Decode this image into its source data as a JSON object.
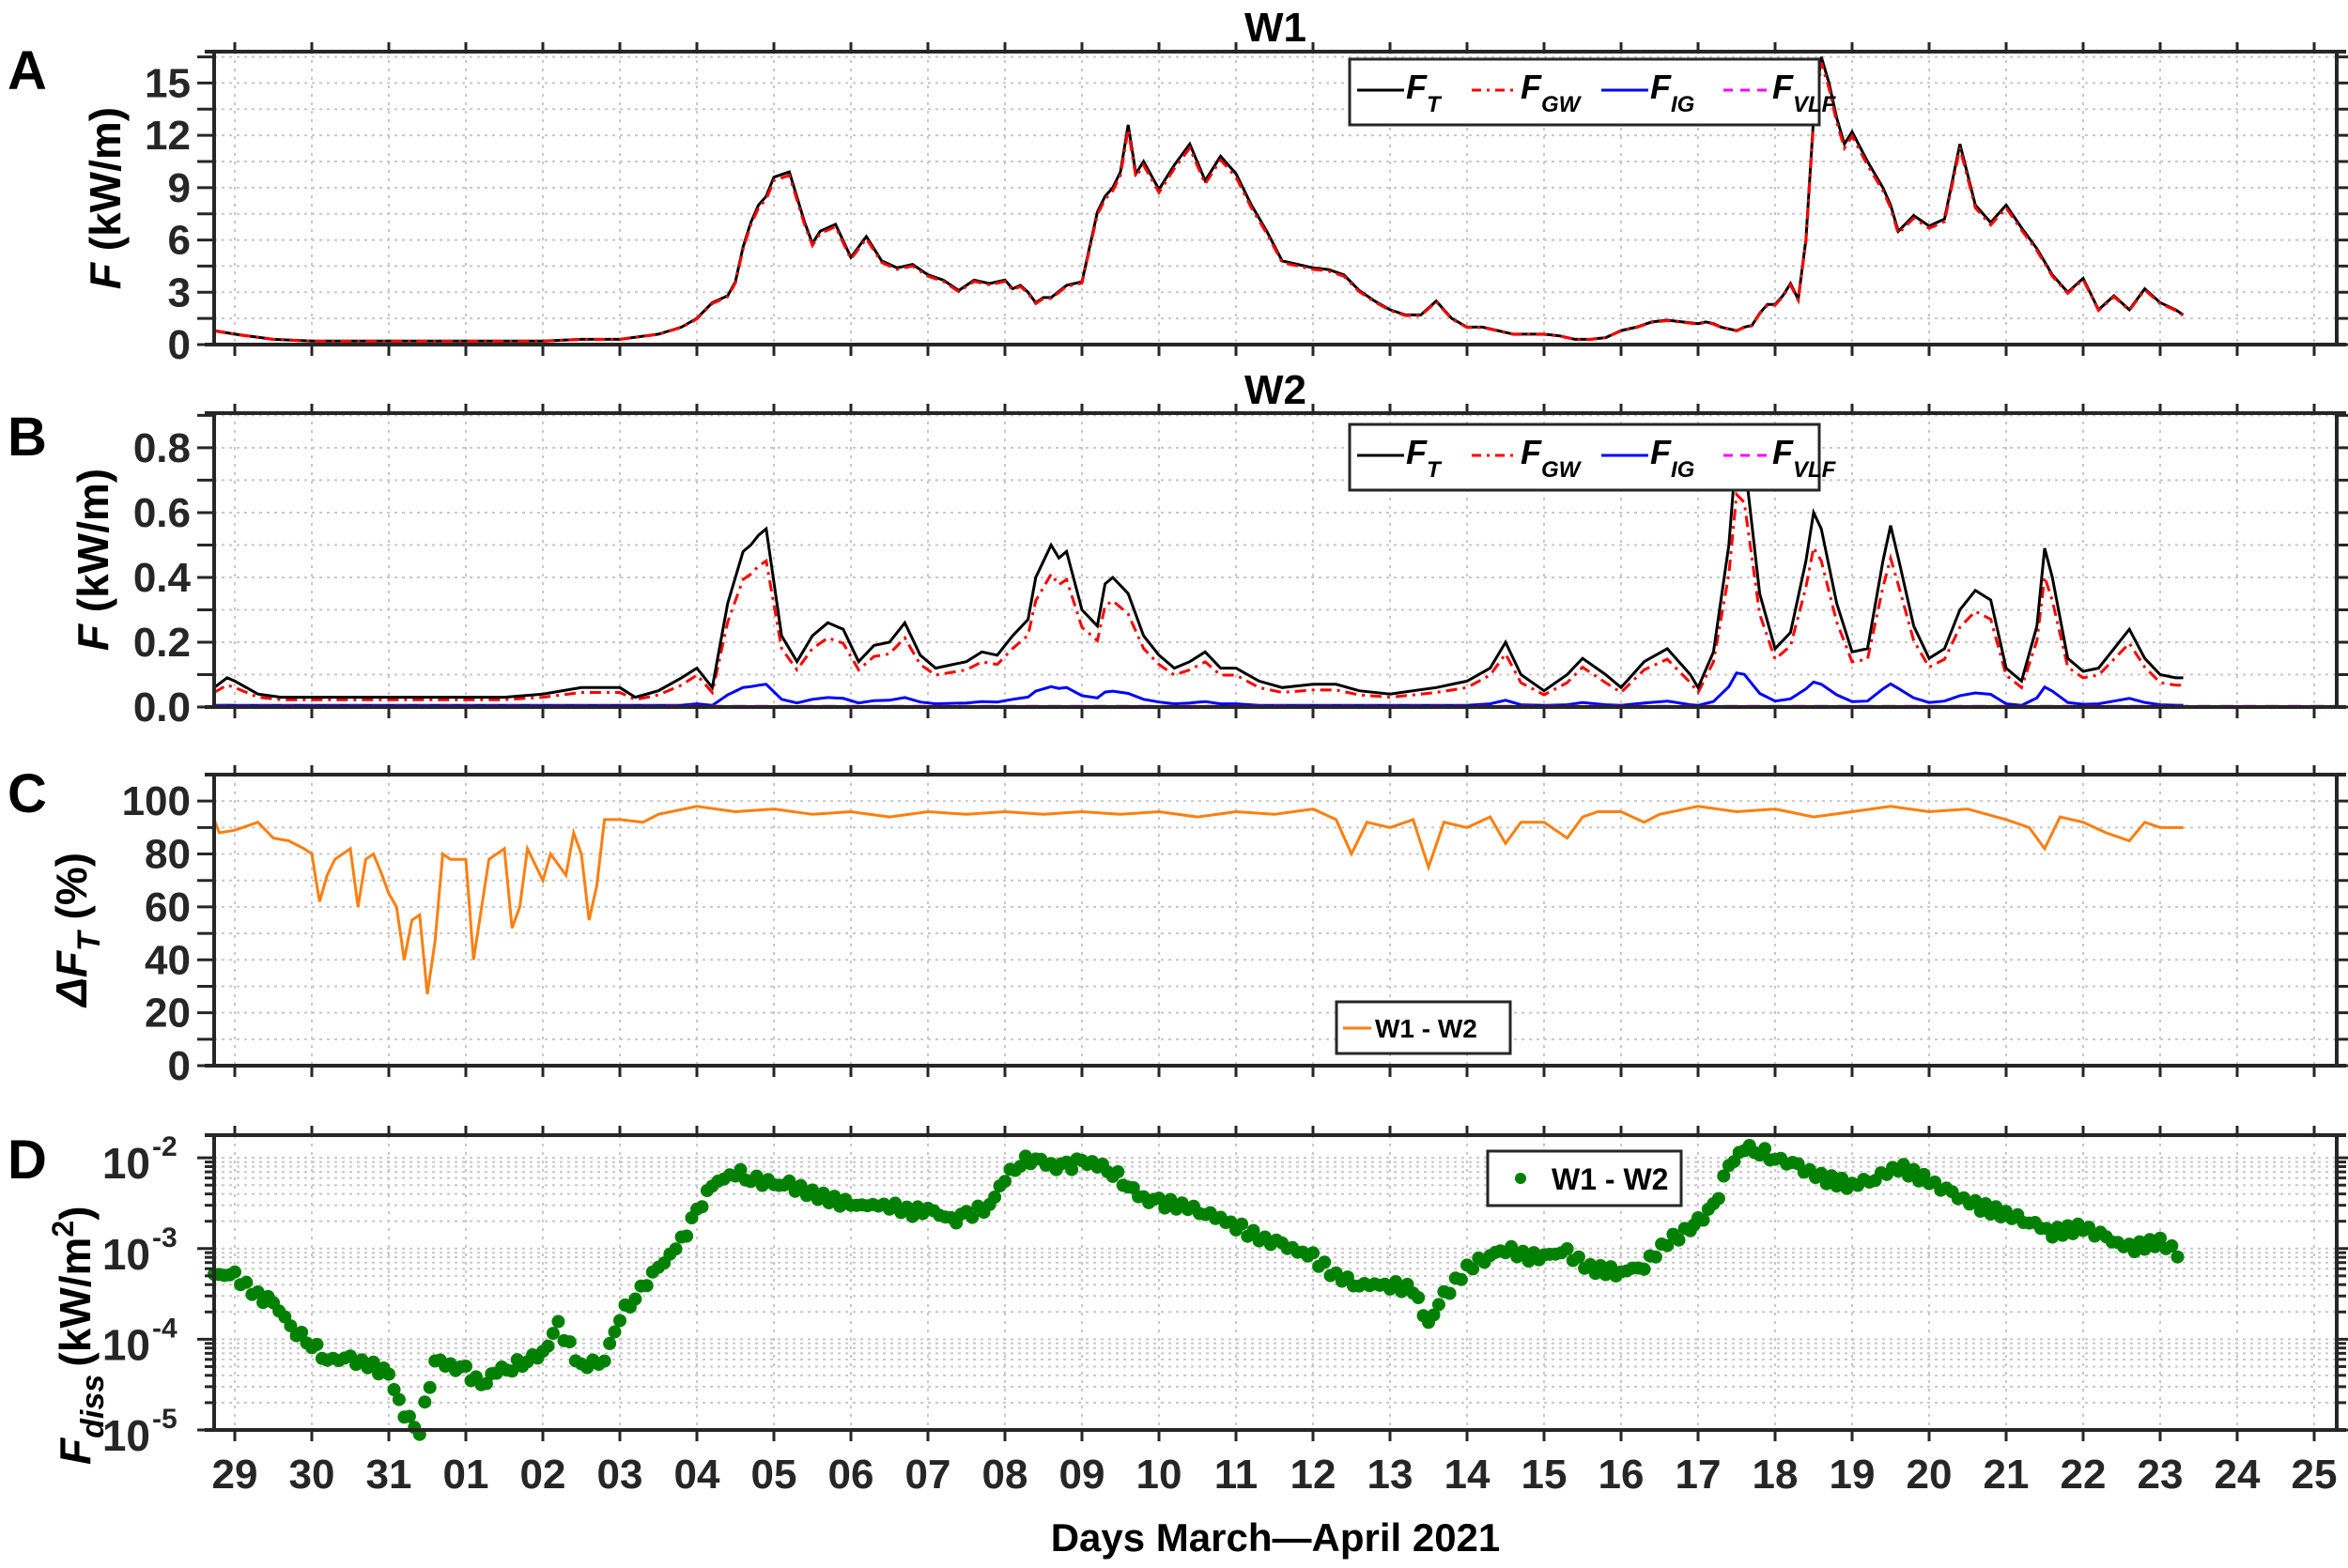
{
  "figure": {
    "xlabel": "Days March—April 2021",
    "x_tick_labels": [
      "29",
      "30",
      "31",
      "01",
      "02",
      "03",
      "04",
      "05",
      "06",
      "07",
      "08",
      "09",
      "10",
      "11",
      "12",
      "13",
      "14",
      "15",
      "16",
      "17",
      "18",
      "19",
      "20",
      "21",
      "22",
      "23",
      "24",
      "25"
    ]
  },
  "panels": {
    "A": {
      "letter": "A",
      "title": "W1",
      "ylabel_main": "F",
      "ylabel_unit": " (kW/m)",
      "yticks": [
        "0",
        "3",
        "6",
        "9",
        "12",
        "15"
      ]
    },
    "B": {
      "letter": "B",
      "title": "W2",
      "ylabel_main": "F",
      "ylabel_unit": " (kW/m)",
      "yticks": [
        "0.0",
        "0.2",
        "0.4",
        "0.6",
        "0.8"
      ]
    },
    "C": {
      "letter": "C",
      "ylabel_main": "ΔF",
      "ylabel_sub": "T",
      "ylabel_unit": " (%)",
      "yticks": [
        "0",
        "20",
        "40",
        "60",
        "80",
        "100"
      ],
      "legend": "W1 - W2"
    },
    "D": {
      "letter": "D",
      "ylabel_main": "F",
      "ylabel_sub": "diss",
      "ylabel_unit": "(kW/m",
      "ylabel_sup": "2",
      "ylabel_close": ")",
      "yticks": [
        "10",
        "10",
        "10",
        "10"
      ],
      "ytick_exps": [
        "-5",
        "-4",
        "-3",
        "-2"
      ],
      "legend": "W1 - W2"
    }
  },
  "legend_flux": [
    {
      "main": "F",
      "sub": "T",
      "color": "#000000",
      "style": "solid"
    },
    {
      "main": "F",
      "sub": "GW",
      "color": "#ff0000",
      "style": "dashdot"
    },
    {
      "main": "F",
      "sub": "IG",
      "color": "#0000ff",
      "style": "solid"
    },
    {
      "main": "F",
      "sub": "VLF",
      "color": "#ff00ff",
      "style": "dashed"
    }
  ],
  "colors": {
    "FT": "#000000",
    "FGW": "#ff0000",
    "FIG": "#0000ff",
    "FVLF": "#ff00ff",
    "deltaFT": "#ff7f0e",
    "Fdiss": "#008000",
    "grid": "#c8c8c8",
    "axis": "#262626"
  },
  "chart_data": [
    {
      "panel": "A",
      "type": "line",
      "title": "W1",
      "xlabel": "Days March—April 2021",
      "ylabel": "F (kW/m)",
      "ylim": [
        0,
        16.8
      ],
      "grid": true,
      "legend_position": "top-center",
      "x_unit": "days since 29 March 2021",
      "x": [
        -0.27,
        0,
        0.5,
        1,
        1.5,
        2,
        2.5,
        3,
        3.5,
        4,
        4.5,
        5,
        5.5,
        5.8,
        6,
        6.2,
        6.4,
        6.5,
        6.6,
        6.7,
        6.8,
        6.9,
        7,
        7.2,
        7.4,
        7.5,
        7.6,
        7.8,
        8,
        8.2,
        8.4,
        8.6,
        8.8,
        9,
        9.2,
        9.4,
        9.6,
        9.8,
        10,
        10.1,
        10.2,
        10.3,
        10.4,
        10.5,
        10.6,
        10.8,
        11,
        11.1,
        11.2,
        11.3,
        11.4,
        11.5,
        11.6,
        11.7,
        11.8,
        12,
        12.2,
        12.4,
        12.6,
        12.8,
        13,
        13.2,
        13.4,
        13.6,
        13.8,
        14,
        14.2,
        14.4,
        14.6,
        14.8,
        15,
        15.2,
        15.4,
        15.6,
        15.8,
        16,
        16.2,
        16.4,
        16.6,
        16.8,
        17,
        17.2,
        17.4,
        17.6,
        17.8,
        18,
        18.2,
        18.4,
        18.6,
        18.8,
        19,
        19.1,
        19.2,
        19.3,
        19.4,
        19.5,
        19.6,
        19.7,
        19.8,
        19.9,
        20,
        20.1,
        20.2,
        20.3,
        20.4,
        20.5,
        20.6,
        20.7,
        20.8,
        20.9,
        21,
        21.2,
        21.4,
        21.5,
        21.6,
        21.8,
        22,
        22.2,
        22.4,
        22.6,
        22.8,
        23,
        23.2,
        23.4,
        23.6,
        23.8,
        24,
        24.2,
        24.4,
        24.6,
        24.8,
        25,
        25.2,
        25.3
      ],
      "series": [
        {
          "name": "F_T",
          "values": [
            0.8,
            0.6,
            0.3,
            0.2,
            0.2,
            0.2,
            0.2,
            0.2,
            0.2,
            0.2,
            0.3,
            0.3,
            0.6,
            1.0,
            1.5,
            2.4,
            2.8,
            3.6,
            5.6,
            7.0,
            8.0,
            8.5,
            9.6,
            9.9,
            7.0,
            5.8,
            6.5,
            6.9,
            5.0,
            6.2,
            4.8,
            4.4,
            4.6,
            4.0,
            3.7,
            3.1,
            3.7,
            3.5,
            3.7,
            3.2,
            3.4,
            3.0,
            2.4,
            2.7,
            2.7,
            3.4,
            3.6,
            5.6,
            7.6,
            8.5,
            9.0,
            9.9,
            12.6,
            9.8,
            10.5,
            8.9,
            10.3,
            11.5,
            9.4,
            10.8,
            9.8,
            8.0,
            6.5,
            4.8,
            4.6,
            4.4,
            4.3,
            4.0,
            3.1,
            2.5,
            2.0,
            1.7,
            1.7,
            2.5,
            1.5,
            1.0,
            1.0,
            0.8,
            0.6,
            0.6,
            0.6,
            0.5,
            0.3,
            0.3,
            0.4,
            0.8,
            1.0,
            1.3,
            1.4,
            1.3,
            1.2,
            1.3,
            1.2,
            1.0,
            0.9,
            0.8,
            1.0,
            1.1,
            1.8,
            2.3,
            2.3,
            2.8,
            3.5,
            2.6,
            6.0,
            13.0,
            16.5,
            15.0,
            13.0,
            11.5,
            12.2,
            10.5,
            9.0,
            8.0,
            6.5,
            7.4,
            6.8,
            7.2,
            11.5,
            8.0,
            7.0,
            8.0,
            6.7,
            5.5,
            4.0,
            3.0,
            3.8,
            2.0,
            2.8,
            2.0,
            3.2,
            2.4,
            2.0,
            1.7,
            1.5,
            1.8,
            1.5,
            1.2
          ]
        },
        {
          "name": "F_GW",
          "values": "≈ F_T (overlapping, slightly below)"
        },
        {
          "name": "F_IG",
          "values": "≈ 0.02 throughout"
        },
        {
          "name": "F_VLF",
          "values": "≈ 0.0 throughout"
        }
      ]
    },
    {
      "panel": "B",
      "type": "line",
      "title": "W2",
      "xlabel": "Days March—April 2021",
      "ylabel": "F (kW/m)",
      "ylim": [
        0,
        0.907
      ],
      "grid": true,
      "legend_position": "top-center",
      "x": [
        -0.27,
        -0.1,
        0,
        0.3,
        0.6,
        1,
        1.5,
        2,
        2.5,
        3,
        3.5,
        4,
        4.5,
        5,
        5.2,
        5.5,
        5.8,
        6,
        6.2,
        6.4,
        6.5,
        6.6,
        6.7,
        6.8,
        6.9,
        7.1,
        7.3,
        7.5,
        7.7,
        7.9,
        8.1,
        8.3,
        8.5,
        8.7,
        8.9,
        9.1,
        9.3,
        9.5,
        9.7,
        9.9,
        10.1,
        10.3,
        10.4,
        10.5,
        10.6,
        10.7,
        10.8,
        11,
        11.2,
        11.3,
        11.4,
        11.6,
        11.8,
        12,
        12.2,
        12.4,
        12.6,
        12.8,
        13,
        13.3,
        13.6,
        14,
        14.3,
        14.6,
        15,
        15.3,
        15.6,
        16,
        16.3,
        16.5,
        16.7,
        17,
        17.3,
        17.5,
        17.8,
        18,
        18.3,
        18.6,
        18.9,
        19,
        19.2,
        19.4,
        19.5,
        19.6,
        19.8,
        20,
        20.2,
        20.4,
        20.5,
        20.6,
        20.8,
        21,
        21.2,
        21.4,
        21.5,
        21.6,
        21.8,
        22,
        22.2,
        22.4,
        22.6,
        22.8,
        23,
        23.2,
        23.4,
        23.5,
        23.6,
        23.8,
        24,
        24.2,
        24.4,
        24.6,
        24.8,
        25,
        25.2,
        25.3
      ],
      "series": [
        {
          "name": "F_T",
          "values": [
            0.06,
            0.09,
            0.08,
            0.04,
            0.03,
            0.03,
            0.03,
            0.03,
            0.03,
            0.03,
            0.03,
            0.04,
            0.06,
            0.06,
            0.03,
            0.05,
            0.09,
            0.12,
            0.06,
            0.32,
            0.4,
            0.48,
            0.5,
            0.53,
            0.55,
            0.22,
            0.14,
            0.22,
            0.26,
            0.24,
            0.14,
            0.19,
            0.2,
            0.26,
            0.16,
            0.12,
            0.13,
            0.14,
            0.17,
            0.16,
            0.22,
            0.27,
            0.4,
            0.45,
            0.5,
            0.46,
            0.48,
            0.3,
            0.25,
            0.38,
            0.4,
            0.35,
            0.22,
            0.16,
            0.12,
            0.14,
            0.17,
            0.12,
            0.12,
            0.08,
            0.06,
            0.07,
            0.07,
            0.05,
            0.04,
            0.05,
            0.06,
            0.08,
            0.12,
            0.2,
            0.1,
            0.05,
            0.1,
            0.15,
            0.1,
            0.06,
            0.14,
            0.18,
            0.1,
            0.06,
            0.17,
            0.5,
            0.8,
            0.77,
            0.35,
            0.18,
            0.23,
            0.45,
            0.6,
            0.55,
            0.32,
            0.17,
            0.18,
            0.45,
            0.56,
            0.46,
            0.25,
            0.15,
            0.18,
            0.3,
            0.36,
            0.33,
            0.12,
            0.08,
            0.25,
            0.49,
            0.4,
            0.15,
            0.11,
            0.12,
            0.18,
            0.24,
            0.15,
            0.1,
            0.09,
            0.09
          ]
        },
        {
          "name": "F_GW",
          "values": "≈ 80–90% of F_T, e.g. peaks 0.46 (Apr 06), 0.42 (Apr 10), 0.63 (Apr 19), 0.47 (Apr 20), 0.48 (Apr 21), 0.43 (Apr 23)"
        },
        {
          "name": "F_IG",
          "values": "small: ~0.01–0.05 typical, peaks ≈0.06 (Apr 06), 0.12 (Apr 19), 0.07 (Apr 20–21)"
        },
        {
          "name": "F_VLF",
          "values": "≈ 0.0 throughout"
        }
      ]
    },
    {
      "panel": "C",
      "type": "line",
      "xlabel": "Days March—April 2021",
      "ylabel": "ΔF_T (%)",
      "ylim": [
        0,
        110
      ],
      "grid": true,
      "legend_position": "lower-center",
      "x": [
        -0.27,
        -0.2,
        0,
        0.1,
        0.3,
        0.5,
        0.7,
        0.9,
        1.0,
        1.1,
        1.2,
        1.3,
        1.5,
        1.6,
        1.7,
        1.8,
        1.9,
        2.0,
        2.1,
        2.2,
        2.3,
        2.4,
        2.5,
        2.6,
        2.7,
        2.8,
        3.0,
        3.1,
        3.3,
        3.5,
        3.6,
        3.7,
        3.8,
        4.0,
        4.1,
        4.3,
        4.4,
        4.5,
        4.6,
        4.7,
        4.8,
        5.0,
        5.3,
        5.5,
        6.0,
        6.5,
        7.0,
        7.5,
        8.0,
        8.5,
        9.0,
        9.5,
        10,
        10.5,
        11,
        11.5,
        12,
        12.5,
        13,
        13.5,
        14,
        14.3,
        14.5,
        14.7,
        15,
        15.3,
        15.5,
        15.7,
        16,
        16.3,
        16.5,
        16.7,
        17,
        17.3,
        17.5,
        17.7,
        18,
        18.3,
        18.5,
        19,
        19.5,
        20,
        20.5,
        21,
        21.5,
        22,
        22.5,
        23,
        23.3,
        23.5,
        23.7,
        24,
        24.3,
        24.6,
        24.8,
        25,
        25.3
      ],
      "series": [
        {
          "name": "W1 - W2",
          "values": [
            93,
            88,
            89,
            90,
            92,
            86,
            85,
            82,
            80,
            62,
            72,
            78,
            82,
            60,
            78,
            80,
            73,
            65,
            60,
            40,
            55,
            57,
            27,
            47,
            80,
            78,
            78,
            40,
            78,
            82,
            52,
            60,
            82,
            70,
            80,
            72,
            88,
            80,
            55,
            68,
            93,
            93,
            92,
            95,
            98,
            96,
            97,
            95,
            96,
            94,
            96,
            95,
            96,
            95,
            96,
            95,
            96,
            94,
            96,
            95,
            97,
            93,
            80,
            92,
            90,
            93,
            75,
            92,
            90,
            94,
            84,
            92,
            92,
            86,
            94,
            96,
            96,
            92,
            95,
            98,
            96,
            97,
            94,
            96,
            98,
            96,
            97,
            93,
            90,
            82,
            94,
            92,
            88,
            85,
            92,
            90,
            90
          ]
        }
      ]
    },
    {
      "panel": "D",
      "type": "scatter",
      "xlabel": "Days March—April 2021",
      "ylabel": "F_diss (kW/m^2)",
      "yscale": "log",
      "ylim": [
        1e-05,
        0.0178
      ],
      "grid": true,
      "legend_position": "top-center",
      "x": [
        -0.27,
        0,
        0.3,
        0.5,
        0.8,
        1.0,
        1.2,
        1.5,
        1.8,
        2.0,
        2.2,
        2.4,
        2.6,
        2.8,
        3.0,
        3.2,
        3.4,
        3.6,
        3.8,
        4.0,
        4.2,
        4.5,
        4.8,
        5.0,
        5.2,
        5.5,
        5.8,
        6.0,
        6.2,
        6.5,
        6.7,
        7.0,
        7.2,
        7.5,
        8.0,
        8.5,
        8.8,
        9.0,
        9.3,
        9.5,
        9.8,
        10.0,
        10.2,
        10.4,
        10.6,
        10.8,
        11.0,
        11.2,
        11.4,
        11.6,
        11.8,
        12.0,
        12.3,
        12.6,
        13.0,
        13.3,
        13.6,
        14.0,
        14.3,
        14.6,
        15.0,
        15.3,
        15.5,
        15.7,
        16.0,
        16.3,
        16.5,
        16.8,
        17.0,
        17.3,
        17.6,
        18.0,
        18.3,
        18.6,
        18.9,
        19.0,
        19.2,
        19.4,
        19.6,
        19.8,
        20.0,
        20.3,
        20.6,
        21.0,
        21.3,
        21.6,
        22.0,
        22.3,
        22.6,
        23.0,
        23.3,
        23.6,
        24.0,
        24.3,
        24.6,
        25.0,
        25.3
      ],
      "series": [
        {
          "name": "W1 - W2",
          "values": [
            0.00052,
            0.0005,
            0.0003,
            0.00025,
            0.00012,
            9e-05,
            6e-05,
            6e-05,
            5e-05,
            4e-05,
            1.5e-05,
            1e-05,
            6e-05,
            5e-05,
            4.5e-05,
            3e-05,
            4.5e-05,
            5e-05,
            6e-05,
            7e-05,
            0.00014,
            5e-05,
            6e-05,
            0.00018,
            0.0003,
            0.0006,
            0.0012,
            0.0025,
            0.005,
            0.007,
            0.006,
            0.005,
            0.005,
            0.004,
            0.003,
            0.003,
            0.0025,
            0.0028,
            0.002,
            0.0023,
            0.003,
            0.006,
            0.009,
            0.01,
            0.008,
            0.008,
            0.009,
            0.0085,
            0.007,
            0.005,
            0.0035,
            0.0032,
            0.003,
            0.0025,
            0.0018,
            0.0013,
            0.0011,
            0.0008,
            0.0005,
            0.0004,
            0.0004,
            0.00035,
            0.00015,
            0.0003,
            0.0006,
            0.00085,
            0.001,
            0.0008,
            0.00085,
            0.0009,
            0.0006,
            0.00055,
            0.00065,
            0.0012,
            0.0016,
            0.002,
            0.0028,
            0.008,
            0.013,
            0.012,
            0.01,
            0.008,
            0.006,
            0.005,
            0.006,
            0.008,
            0.0055,
            0.004,
            0.003,
            0.0024,
            0.002,
            0.0015,
            0.0017,
            0.0013,
            0.001,
            0.0012,
            0.0008
          ]
        }
      ]
    }
  ]
}
